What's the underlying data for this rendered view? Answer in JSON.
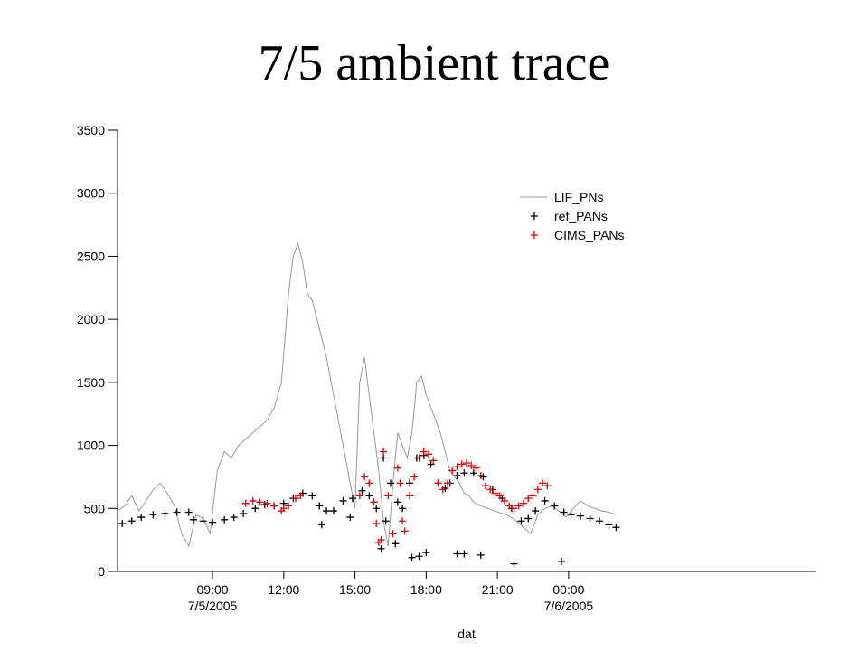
{
  "slide_title": "7/5 ambient trace",
  "colors": {
    "lif": "#999999",
    "ref": "#000000",
    "cims": "#e00000"
  },
  "chart_data": {
    "type": "line",
    "xlabel": "dat",
    "ylabel": "",
    "ylim": [
      0,
      3500
    ],
    "xlim_hours": [
      5.0,
      34.4
    ],
    "yticks": [
      0,
      500,
      1000,
      1500,
      2000,
      2500,
      3000,
      3500
    ],
    "xticks": [
      {
        "at": 9,
        "label": "09:00",
        "date": "7/5/2005"
      },
      {
        "at": 12,
        "label": "12:00",
        "date": ""
      },
      {
        "at": 15,
        "label": "15:00",
        "date": ""
      },
      {
        "at": 18,
        "label": "18:00",
        "date": ""
      },
      {
        "at": 21,
        "label": "21:00",
        "date": ""
      },
      {
        "at": 24,
        "label": "00:00",
        "date": "7/6/2005"
      }
    ],
    "legend_position": "top-right",
    "series": [
      {
        "name": "LIF_PNs",
        "style": "line",
        "x": [
          5.0,
          5.3,
          5.6,
          5.9,
          6.2,
          6.5,
          6.8,
          7.1,
          7.4,
          7.7,
          8.0,
          8.3,
          8.6,
          8.9,
          9.2,
          9.5,
          9.8,
          10.1,
          10.4,
          10.7,
          11.0,
          11.3,
          11.6,
          11.9,
          12.2,
          12.4,
          12.6,
          12.8,
          13.0,
          13.2,
          13.4,
          13.6,
          13.8,
          14.0,
          14.2,
          14.4,
          14.6,
          14.8,
          15.0,
          15.2,
          15.4,
          15.6,
          15.8,
          16.0,
          16.2,
          16.4,
          16.6,
          16.8,
          17.0,
          17.2,
          17.4,
          17.6,
          17.8,
          18.0,
          18.2,
          18.4,
          18.6,
          18.8,
          19.0,
          19.2,
          19.4,
          19.6,
          19.8,
          20.0,
          20.3,
          20.6,
          20.9,
          21.2,
          21.5,
          21.8,
          22.1,
          22.4,
          22.7,
          23.0,
          23.3,
          23.6,
          23.9,
          24.2,
          24.5,
          24.8,
          25.1,
          25.4,
          25.7,
          26.0
        ],
        "y": [
          480,
          520,
          600,
          480,
          560,
          650,
          700,
          620,
          520,
          300,
          200,
          450,
          420,
          300,
          800,
          950,
          900,
          1000,
          1050,
          1100,
          1150,
          1200,
          1300,
          1500,
          2200,
          2500,
          2600,
          2450,
          2200,
          2150,
          2000,
          1850,
          1700,
          1500,
          1300,
          1100,
          900,
          700,
          500,
          1500,
          1700,
          1400,
          1100,
          800,
          400,
          200,
          700,
          1100,
          1000,
          900,
          1100,
          1500,
          1550,
          1400,
          1300,
          1200,
          1100,
          950,
          800,
          750,
          700,
          620,
          600,
          550,
          520,
          500,
          480,
          460,
          440,
          400,
          350,
          300,
          450,
          500,
          520,
          480,
          430,
          500,
          560,
          520,
          500,
          480,
          470,
          450
        ]
      },
      {
        "name": "ref_PANs",
        "style": "marker",
        "x": [
          5.2,
          5.6,
          6.0,
          6.5,
          7.0,
          7.5,
          8.0,
          8.2,
          8.6,
          9.0,
          9.5,
          9.9,
          10.3,
          10.8,
          11.2,
          11.6,
          12.0,
          12.4,
          12.8,
          13.2,
          13.5,
          13.8,
          14.1,
          14.5,
          14.9,
          15.3,
          15.6,
          15.9,
          16.1,
          16.3,
          16.5,
          16.8,
          17.0,
          17.3,
          17.6,
          17.9,
          18.2,
          18.5,
          18.8,
          19.0,
          19.3,
          19.6,
          20.0,
          20.4,
          20.8,
          21.2,
          21.6,
          22.0,
          22.3,
          22.6,
          23.0,
          23.4,
          23.8,
          24.1,
          24.5,
          24.9,
          25.3,
          25.7,
          26.0,
          13.6,
          14.8,
          16.2,
          16.7,
          17.4,
          17.7,
          18.0,
          19.3,
          19.6,
          20.3,
          21.7,
          23.7
        ],
        "y": [
          380,
          400,
          430,
          450,
          460,
          470,
          470,
          410,
          400,
          390,
          410,
          430,
          460,
          500,
          530,
          520,
          540,
          580,
          620,
          600,
          520,
          480,
          480,
          560,
          580,
          640,
          600,
          500,
          180,
          400,
          700,
          550,
          500,
          700,
          900,
          920,
          850,
          700,
          660,
          700,
          760,
          780,
          780,
          750,
          650,
          580,
          500,
          400,
          420,
          480,
          560,
          520,
          470,
          450,
          440,
          420,
          400,
          370,
          350,
          370,
          430,
          900,
          220,
          110,
          120,
          150,
          140,
          140,
          130,
          60,
          80
        ]
      },
      {
        "name": "CIMS_PANs",
        "style": "marker",
        "x": [
          10.4,
          10.7,
          11.0,
          11.3,
          11.6,
          11.9,
          12.0,
          12.2,
          12.5,
          12.7,
          15.2,
          15.4,
          15.6,
          15.8,
          15.9,
          16.0,
          16.1,
          16.2,
          16.4,
          16.6,
          16.8,
          16.9,
          17.0,
          17.1,
          17.3,
          17.5,
          17.7,
          17.9,
          18.1,
          18.3,
          18.5,
          18.7,
          18.9,
          19.1,
          19.3,
          19.5,
          19.7,
          19.9,
          20.1,
          20.3,
          20.5,
          20.7,
          20.9,
          21.1,
          21.3,
          21.5,
          21.7,
          21.9,
          22.1,
          22.3,
          22.5,
          22.7,
          22.9,
          23.1
        ],
        "y": [
          540,
          560,
          550,
          540,
          520,
          480,
          500,
          520,
          580,
          600,
          600,
          750,
          700,
          550,
          380,
          230,
          250,
          950,
          600,
          300,
          820,
          700,
          400,
          320,
          600,
          750,
          900,
          950,
          930,
          880,
          700,
          650,
          700,
          800,
          830,
          850,
          860,
          840,
          820,
          760,
          680,
          650,
          620,
          600,
          560,
          520,
          500,
          520,
          540,
          580,
          600,
          650,
          700,
          680
        ]
      }
    ]
  }
}
